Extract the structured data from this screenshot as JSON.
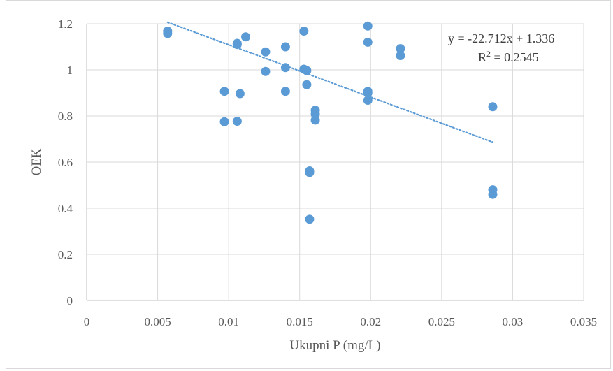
{
  "chart_data": {
    "type": "scatter",
    "title": "",
    "xlabel": "Ukupni P (mg/L)",
    "ylabel": "OEK",
    "xlim": [
      0,
      0.035
    ],
    "ylim": [
      0,
      1.2
    ],
    "x_ticks": [
      0,
      0.005,
      0.01,
      0.015,
      0.02,
      0.025,
      0.03,
      0.035
    ],
    "x_tick_labels": [
      "0",
      "0.005",
      "0.01",
      "0.015",
      "0.02",
      "0.025",
      "0.03",
      "0.035"
    ],
    "y_ticks": [
      0,
      0.2,
      0.4,
      0.6,
      0.8,
      1,
      1.2
    ],
    "y_tick_labels": [
      "0",
      "0.2",
      "0.4",
      "0.6",
      "0.8",
      "1",
      "1.2"
    ],
    "grid": true,
    "marker_color": "#5b9bd5",
    "trendline_color": "#5b9bd5",
    "series": [
      {
        "points": [
          [
            0.0057,
            1.168
          ],
          [
            0.0057,
            1.158
          ],
          [
            0.0097,
            0.907
          ],
          [
            0.0097,
            0.775
          ],
          [
            0.0106,
            1.115
          ],
          [
            0.0106,
            1.11
          ],
          [
            0.0106,
            0.777
          ],
          [
            0.0108,
            0.897
          ],
          [
            0.0112,
            1.143
          ],
          [
            0.0126,
            1.078
          ],
          [
            0.0126,
            0.993
          ],
          [
            0.014,
            1.1
          ],
          [
            0.014,
            1.01
          ],
          [
            0.014,
            0.907
          ],
          [
            0.0153,
            1.168
          ],
          [
            0.0153,
            1.003
          ],
          [
            0.0155,
            0.997
          ],
          [
            0.0155,
            0.936
          ],
          [
            0.0157,
            0.562
          ],
          [
            0.0157,
            0.555
          ],
          [
            0.0157,
            0.352
          ],
          [
            0.0161,
            0.825
          ],
          [
            0.0161,
            0.808
          ],
          [
            0.0161,
            0.782
          ],
          [
            0.0198,
            1.19
          ],
          [
            0.0198,
            1.12
          ],
          [
            0.0198,
            0.907
          ],
          [
            0.0198,
            0.9
          ],
          [
            0.0198,
            0.868
          ],
          [
            0.0221,
            1.092
          ],
          [
            0.0221,
            1.062
          ],
          [
            0.0286,
            0.84
          ],
          [
            0.0286,
            0.48
          ],
          [
            0.0286,
            0.46
          ]
        ]
      }
    ],
    "trendline": {
      "type": "linear",
      "slope": -22.712,
      "intercept": 1.336,
      "x_range": [
        0.0057,
        0.0286
      ],
      "equation_label": "y = -22.712x + 1.336",
      "r2_prefix": "R",
      "r2_exponent": "2",
      "r2_value": " = 0.2545",
      "annotation_position": "top-right"
    }
  }
}
